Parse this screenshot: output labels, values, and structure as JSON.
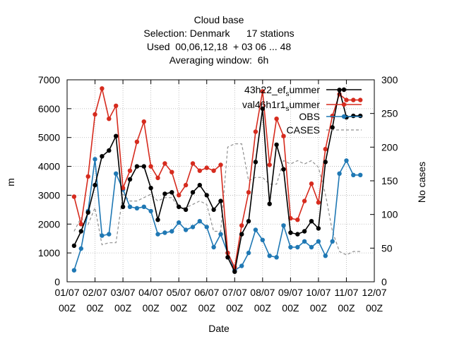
{
  "chart_data": {
    "type": "line",
    "title_lines": [
      "Cloud base",
      "Selection: Denmark      17 stations",
      "Used  00,06,12,18  + 03 06 ... 48",
      "Averaging window:  6h"
    ],
    "xlabel": "Date",
    "ylabel": "m",
    "y2label": "No cases",
    "x_ticks": [
      "01/07",
      "02/07",
      "03/07",
      "04/07",
      "05/07",
      "06/07",
      "07/07",
      "08/07",
      "09/07",
      "10/07",
      "11/07",
      "12/07"
    ],
    "x_tick_sub": "00Z",
    "xlim_days": [
      1,
      12
    ],
    "ylim": [
      0,
      7000
    ],
    "y_ticks": [
      "0",
      "1000",
      "2000",
      "3000",
      "4000",
      "5000",
      "6000",
      "7000"
    ],
    "y2lim": [
      0,
      300
    ],
    "y2_ticks": [
      "0",
      "50",
      "100",
      "150",
      "200",
      "250",
      "300"
    ],
    "grid": true,
    "legend_position": "top-right",
    "series": [
      {
        "name": "43h22_ef_summer",
        "legend_main": "43h22_ef",
        "legend_sub": "s",
        "legend_tail": "ummer",
        "color": "#000000",
        "axis": "y",
        "style": "line-markers",
        "x": [
          1.25,
          1.5,
          1.75,
          2.0,
          2.25,
          2.5,
          2.75,
          3.0,
          3.25,
          3.5,
          3.75,
          4.0,
          4.25,
          4.5,
          4.75,
          5.0,
          5.25,
          5.5,
          5.75,
          6.0,
          6.25,
          6.5,
          6.75,
          7.0,
          7.25,
          7.5,
          7.75,
          8.0,
          8.25,
          8.5,
          8.75,
          9.0,
          9.25,
          9.5,
          9.75,
          10.0,
          10.25,
          10.5,
          10.75,
          11.0,
          11.25,
          11.5
        ],
        "values": [
          1250,
          1750,
          2400,
          3350,
          4350,
          4550,
          5050,
          2600,
          3550,
          4000,
          4000,
          3250,
          2150,
          3050,
          3100,
          2600,
          2500,
          3100,
          3350,
          3000,
          2500,
          2800,
          850,
          350,
          1650,
          2100,
          4150,
          6000,
          2700,
          4750,
          3900,
          1700,
          1650,
          1750,
          2100,
          1850,
          4150,
          5350,
          6650,
          5700,
          5750,
          5750
        ]
      },
      {
        "name": "val46h1r1_summer",
        "legend_main": "val46h1r1",
        "legend_sub": "s",
        "legend_tail": "ummer",
        "color": "#d62b1e",
        "axis": "y",
        "style": "line-markers",
        "x": [
          1.25,
          1.5,
          1.75,
          2.0,
          2.25,
          2.5,
          2.75,
          3.0,
          3.25,
          3.5,
          3.75,
          4.0,
          4.25,
          4.5,
          4.75,
          5.0,
          5.25,
          5.5,
          5.75,
          6.0,
          6.25,
          6.5,
          6.75,
          7.0,
          7.25,
          7.5,
          7.75,
          8.0,
          8.25,
          8.5,
          8.75,
          9.0,
          9.25,
          9.5,
          9.75,
          10.0,
          10.25,
          10.5,
          10.75,
          11.0,
          11.25,
          11.5
        ],
        "values": [
          2950,
          2000,
          3650,
          5800,
          6700,
          5650,
          6100,
          3250,
          3850,
          4850,
          5550,
          4000,
          3600,
          4100,
          3800,
          3000,
          3350,
          4100,
          3850,
          3950,
          3850,
          4050,
          1000,
          500,
          1950,
          3100,
          5200,
          6600,
          4050,
          5650,
          5050,
          2200,
          2150,
          2800,
          3400,
          2750,
          4600,
          5750,
          6500,
          6300,
          6300,
          6300
        ]
      },
      {
        "name": "OBS",
        "legend_main": "OBS",
        "legend_sub": "",
        "legend_tail": "",
        "color": "#1f78b4",
        "axis": "y",
        "style": "line-markers",
        "x": [
          1.25,
          1.5,
          1.75,
          2.0,
          2.25,
          2.5,
          2.75,
          3.0,
          3.25,
          3.5,
          3.75,
          4.0,
          4.25,
          4.5,
          4.75,
          5.0,
          5.25,
          5.5,
          5.75,
          6.0,
          6.25,
          6.5,
          6.75,
          7.0,
          7.25,
          7.5,
          7.75,
          8.0,
          8.25,
          8.5,
          8.75,
          9.0,
          9.25,
          9.5,
          9.75,
          10.0,
          10.25,
          10.5,
          10.75,
          11.0,
          11.25,
          11.5
        ],
        "values": [
          400,
          1150,
          2450,
          4250,
          1600,
          1650,
          3750,
          3200,
          2600,
          2550,
          2600,
          2450,
          1650,
          1700,
          1750,
          2050,
          1800,
          1900,
          2100,
          1900,
          1200,
          1650,
          1000,
          400,
          550,
          1000,
          1800,
          1450,
          900,
          850,
          1950,
          1200,
          1200,
          1400,
          1200,
          1400,
          900,
          1400,
          3750,
          4200,
          3700,
          3700
        ]
      },
      {
        "name": "CASES",
        "legend_main": "CASES",
        "legend_sub": "",
        "legend_tail": "",
        "color": "#909090",
        "axis": "y2",
        "style": "dashed",
        "x": [
          1.25,
          1.5,
          1.75,
          2.0,
          2.25,
          2.5,
          2.75,
          3.0,
          3.25,
          3.5,
          3.75,
          4.0,
          4.25,
          4.5,
          4.75,
          5.0,
          5.25,
          5.5,
          5.75,
          6.0,
          6.25,
          6.5,
          6.75,
          7.0,
          7.25,
          7.5,
          7.75,
          8.0,
          8.25,
          8.5,
          8.75,
          9.0,
          9.25,
          9.5,
          9.75,
          10.0,
          10.25,
          10.5,
          10.75,
          11.0,
          11.25,
          11.5
        ],
        "values": [
          75,
          95,
          85,
          110,
          55,
          58,
          58,
          130,
          120,
          120,
          125,
          130,
          120,
          125,
          125,
          110,
          110,
          115,
          120,
          115,
          75,
          75,
          200,
          205,
          205,
          150,
          155,
          155,
          145,
          145,
          180,
          175,
          180,
          175,
          180,
          170,
          130,
          75,
          45,
          40,
          45,
          45
        ]
      }
    ]
  }
}
